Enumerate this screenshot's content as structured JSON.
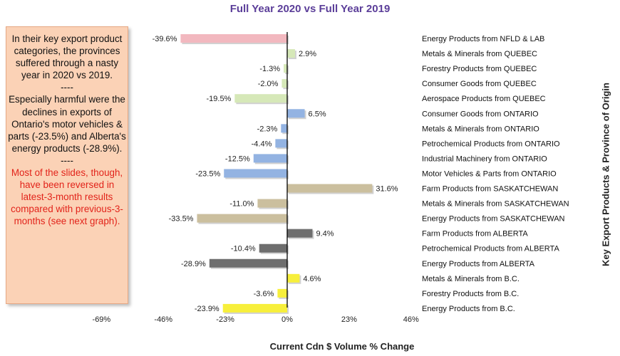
{
  "chart_data": {
    "type": "bar",
    "orientation": "horizontal",
    "title": "Full Year 2020 vs Full Year 2019",
    "xlabel": "Current Cdn $ Volume % Change",
    "ylabel": "Key Export Products & Province of Origin",
    "xlim": [
      -69,
      46
    ],
    "xticks": [
      "-69%",
      "-46%",
      "-23%",
      "0%",
      "23%",
      "46%"
    ],
    "grid": false,
    "bars": [
      {
        "label": "Energy Products from NFLD & LAB",
        "value": -39.6,
        "value_label": "-39.6%",
        "color": "#f2b8bf"
      },
      {
        "label": "Metals & Minerals from QUEBEC",
        "value": 2.9,
        "value_label": "2.9%",
        "color": "#d6e8b8"
      },
      {
        "label": "Forestry Products from QUEBEC",
        "value": -1.3,
        "value_label": "-1.3%",
        "color": "#d6e8b8"
      },
      {
        "label": "Consumer Goods from QUEBEC",
        "value": -2.0,
        "value_label": "-2.0%",
        "color": "#d6e8b8"
      },
      {
        "label": "Aerospace Products from QUEBEC",
        "value": -19.5,
        "value_label": "-19.5%",
        "color": "#d6e8b8"
      },
      {
        "label": "Consumer Goods from ONTARIO",
        "value": 6.5,
        "value_label": "6.5%",
        "color": "#93b3e2"
      },
      {
        "label": "Metals & Minerals from ONTARIO",
        "value": -2.3,
        "value_label": "-2.3%",
        "color": "#93b3e2"
      },
      {
        "label": "Petrochemical Products from ONTARIO",
        "value": -4.4,
        "value_label": "-4.4%",
        "color": "#93b3e2"
      },
      {
        "label": "Industrial Machinery from ONTARIO",
        "value": -12.5,
        "value_label": "-12.5%",
        "color": "#93b3e2"
      },
      {
        "label": "Motor Vehicles & Parts from ONTARIO",
        "value": -23.5,
        "value_label": "-23.5%",
        "color": "#93b3e2"
      },
      {
        "label": "Farm Products from SASKATCHEWAN",
        "value": 31.6,
        "value_label": "31.6%",
        "color": "#cbbf9e"
      },
      {
        "label": "Metals & Minerals from SASKATCHEWAN",
        "value": -11.0,
        "value_label": "-11.0%",
        "color": "#cbbf9e"
      },
      {
        "label": "Energy Products from SASKATCHEWAN",
        "value": -33.5,
        "value_label": "-33.5%",
        "color": "#cbbf9e"
      },
      {
        "label": "Farm Products from ALBERTA",
        "value": 9.4,
        "value_label": "9.4%",
        "color": "#6e6e6e"
      },
      {
        "label": "Petrochemical Products from ALBERTA",
        "value": -10.4,
        "value_label": "-10.4%",
        "color": "#6e6e6e"
      },
      {
        "label": "Energy Products from ALBERTA",
        "value": -28.9,
        "value_label": "-28.9%",
        "color": "#6e6e6e"
      },
      {
        "label": "Metals & Minerals from B.C.",
        "value": 4.6,
        "value_label": "4.6%",
        "color": "#f7ef3b"
      },
      {
        "label": "Forestry Products from B.C.",
        "value": -3.6,
        "value_label": "-3.6%",
        "color": "#f7ef3b"
      },
      {
        "label": "Energy Products from B.C.",
        "value": -23.9,
        "value_label": "-23.9%",
        "color": "#f7ef3b"
      }
    ]
  },
  "note": {
    "para1": "In their key export product categories, the provinces suffered through a nasty year in 2020 vs 2019.",
    "sep1": "----",
    "para2": "Especially harmful were the declines in exports of Ontario's motor vehicles & parts (-23.5%) and Alberta's energy products (-28.9%).",
    "sep2": "----",
    "para3": "Most of the slides, though, have been reversed in latest-3-month results compared with previous-3-months (see next graph).",
    "para3_color": "#e2231a"
  }
}
